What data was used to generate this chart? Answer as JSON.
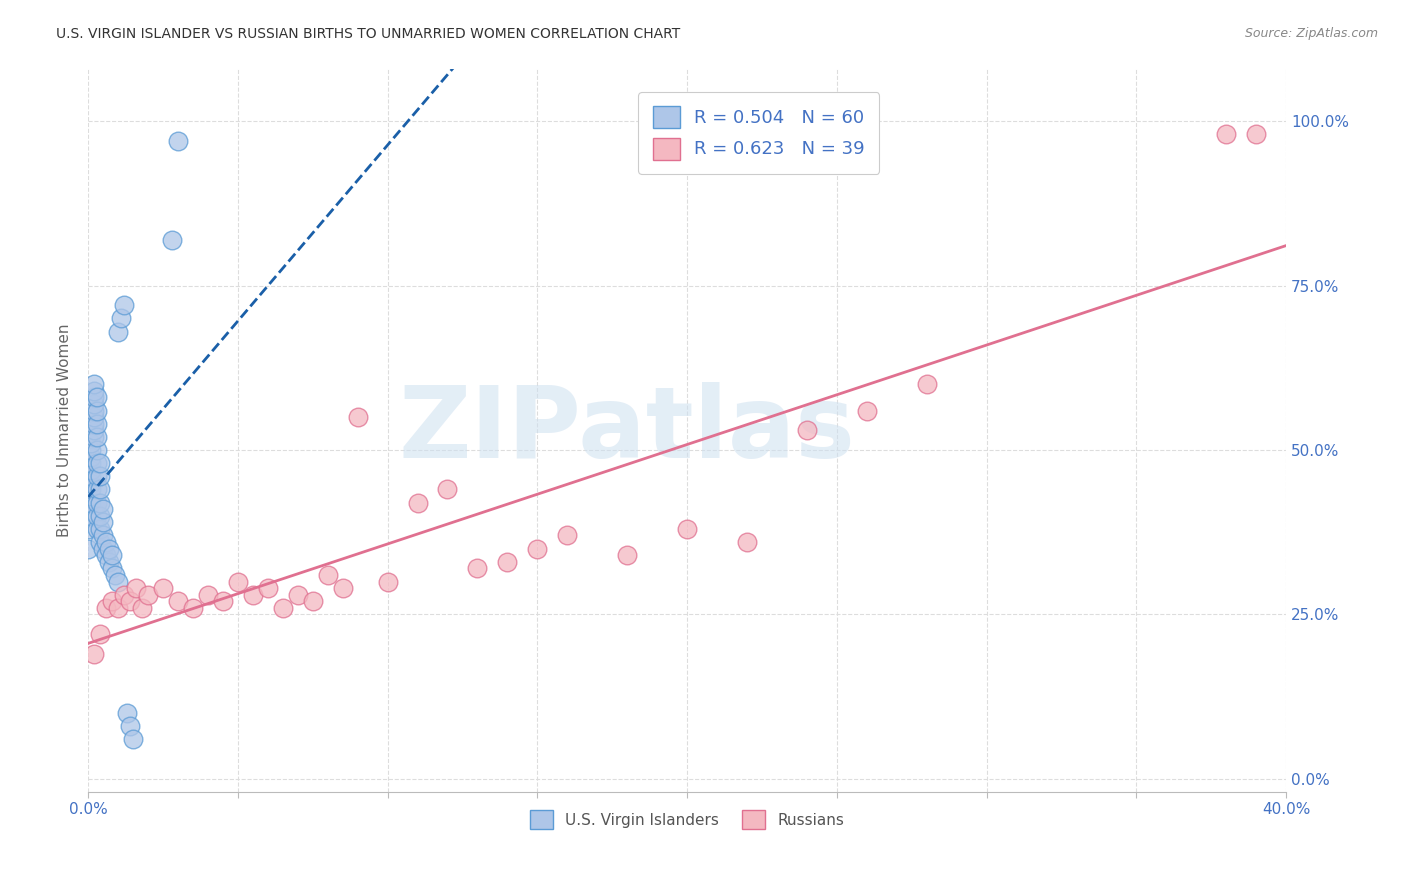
{
  "title": "U.S. VIRGIN ISLANDER VS RUSSIAN BIRTHS TO UNMARRIED WOMEN CORRELATION CHART",
  "source": "Source: ZipAtlas.com",
  "ylabel": "Births to Unmarried Women",
  "watermark": "ZIPatlas",
  "blue_R": 0.504,
  "blue_N": 60,
  "pink_R": 0.623,
  "pink_N": 39,
  "blue_label": "U.S. Virgin Islanders",
  "pink_label": "Russians",
  "xlim": [
    0.0,
    0.4
  ],
  "ylim": [
    -0.02,
    1.08
  ],
  "yticks": [
    0.0,
    0.25,
    0.5,
    0.75,
    1.0
  ],
  "ytick_labels": [
    "0.0%",
    "25.0%",
    "50.0%",
    "75.0%",
    "100.0%"
  ],
  "xticks": [
    0.0,
    0.05,
    0.1,
    0.15,
    0.2,
    0.25,
    0.3,
    0.35,
    0.4
  ],
  "xtick_labels": [
    "0.0%",
    "",
    "",
    "",
    "",
    "",
    "",
    "",
    "40.0%"
  ],
  "blue_color": "#aec6e8",
  "blue_edge_color": "#5b9bd5",
  "pink_color": "#f4b8c1",
  "pink_edge_color": "#e07090",
  "blue_scatter_x": [
    0.0,
    0.0,
    0.001,
    0.001,
    0.001,
    0.001,
    0.001,
    0.001,
    0.001,
    0.001,
    0.001,
    0.001,
    0.001,
    0.002,
    0.002,
    0.002,
    0.002,
    0.002,
    0.002,
    0.002,
    0.002,
    0.002,
    0.003,
    0.003,
    0.003,
    0.003,
    0.003,
    0.003,
    0.003,
    0.003,
    0.003,
    0.003,
    0.003,
    0.004,
    0.004,
    0.004,
    0.004,
    0.004,
    0.004,
    0.004,
    0.005,
    0.005,
    0.005,
    0.005,
    0.006,
    0.006,
    0.007,
    0.007,
    0.008,
    0.008,
    0.009,
    0.01,
    0.01,
    0.011,
    0.012,
    0.013,
    0.014,
    0.015,
    0.03,
    0.028
  ],
  "blue_scatter_y": [
    0.38,
    0.35,
    0.4,
    0.42,
    0.43,
    0.44,
    0.45,
    0.46,
    0.47,
    0.48,
    0.49,
    0.5,
    0.51,
    0.52,
    0.53,
    0.54,
    0.55,
    0.56,
    0.57,
    0.58,
    0.59,
    0.6,
    0.38,
    0.4,
    0.42,
    0.44,
    0.46,
    0.48,
    0.5,
    0.52,
    0.54,
    0.56,
    0.58,
    0.36,
    0.38,
    0.4,
    0.42,
    0.44,
    0.46,
    0.48,
    0.35,
    0.37,
    0.39,
    0.41,
    0.34,
    0.36,
    0.33,
    0.35,
    0.32,
    0.34,
    0.31,
    0.3,
    0.68,
    0.7,
    0.72,
    0.1,
    0.08,
    0.06,
    0.97,
    0.82
  ],
  "pink_scatter_x": [
    0.002,
    0.004,
    0.006,
    0.008,
    0.01,
    0.012,
    0.014,
    0.016,
    0.018,
    0.02,
    0.025,
    0.03,
    0.035,
    0.04,
    0.045,
    0.05,
    0.055,
    0.06,
    0.065,
    0.07,
    0.075,
    0.08,
    0.085,
    0.09,
    0.1,
    0.11,
    0.12,
    0.13,
    0.14,
    0.15,
    0.16,
    0.18,
    0.2,
    0.22,
    0.24,
    0.26,
    0.28,
    0.38,
    0.39
  ],
  "pink_scatter_y": [
    0.19,
    0.22,
    0.26,
    0.27,
    0.26,
    0.28,
    0.27,
    0.29,
    0.26,
    0.28,
    0.29,
    0.27,
    0.26,
    0.28,
    0.27,
    0.3,
    0.28,
    0.29,
    0.26,
    0.28,
    0.27,
    0.31,
    0.29,
    0.55,
    0.3,
    0.42,
    0.44,
    0.32,
    0.33,
    0.35,
    0.37,
    0.34,
    0.38,
    0.36,
    0.53,
    0.56,
    0.6,
    0.98,
    0.98
  ],
  "blue_line_color": "#1a5fa8",
  "pink_line_color": "#e07090",
  "title_color": "#333333",
  "axis_color": "#4472c4",
  "legend_R_color": "#4472c4",
  "background_color": "#ffffff",
  "grid_color": "#dddddd"
}
